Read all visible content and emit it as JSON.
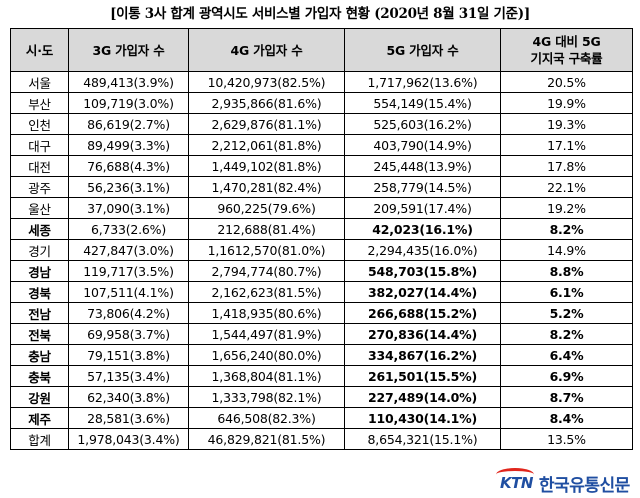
{
  "title": "[이통 3사 합계 광역시도 서비스별 가입자 현황 (2020년 8월 31일 기준)]",
  "header": {
    "region": "시·도",
    "c3g": "3G 가입자 수",
    "c4g": "4G 가입자 수",
    "c5g": "5G 가입자 수",
    "rate_line1": "4G 대비 5G",
    "rate_line2": "기지국 구축률"
  },
  "rows": [
    {
      "region": "서울",
      "c3g": "489,413(3.9%)",
      "c4g": "10,420,973(82.5%)",
      "c5g": "1,717,962(13.6%)",
      "rate": "20.5%",
      "highlight": false
    },
    {
      "region": "부산",
      "c3g": "109,719(3.0%)",
      "c4g": "2,935,866(81.6%)",
      "c5g": "554,149(15.4%)",
      "rate": "19.9%",
      "highlight": false
    },
    {
      "region": "인천",
      "c3g": "86,619(2.7%)",
      "c4g": "2,629,876(81.1%)",
      "c5g": "525,603(16.2%)",
      "rate": "19.3%",
      "highlight": false
    },
    {
      "region": "대구",
      "c3g": "89,499(3.3%)",
      "c4g": "2,212,061(81.8%)",
      "c5g": "403,790(14.9%)",
      "rate": "17.1%",
      "highlight": false
    },
    {
      "region": "대전",
      "c3g": "76,688(4.3%)",
      "c4g": "1,449,102(81.8%)",
      "c5g": "245,448(13.9%)",
      "rate": "17.8%",
      "highlight": false
    },
    {
      "region": "광주",
      "c3g": "56,236(3.1%)",
      "c4g": "1,470,281(82.4%)",
      "c5g": "258,779(14.5%)",
      "rate": "22.1%",
      "highlight": false
    },
    {
      "region": "울산",
      "c3g": "37,090(3.1%)",
      "c4g": "960,225(79.6%)",
      "c5g": "209,591(17.4%)",
      "rate": "19.2%",
      "highlight": false
    },
    {
      "region": "세종",
      "c3g": "6,733(2.6%)",
      "c4g": "212,688(81.4%)",
      "c5g": "42,023(16.1%)",
      "rate": "8.2%",
      "highlight": true
    },
    {
      "region": "경기",
      "c3g": "427,847(3.0%)",
      "c4g": "1,1612,570(81.0%)",
      "c5g": "2,294,435(16.0%)",
      "rate": "14.9%",
      "highlight": false
    },
    {
      "region": "경남",
      "c3g": "119,717(3.5%)",
      "c4g": "2,794,774(80.7%)",
      "c5g": "548,703(15.8%)",
      "rate": "8.8%",
      "highlight": true
    },
    {
      "region": "경북",
      "c3g": "107,511(4.1%)",
      "c4g": "2,162,623(81.5%)",
      "c5g": "382,027(14.4%)",
      "rate": "6.1%",
      "highlight": true
    },
    {
      "region": "전남",
      "c3g": "73,806(4.2%)",
      "c4g": "1,418,935(80.6%)",
      "c5g": "266,688(15.2%)",
      "rate": "5.2%",
      "highlight": true
    },
    {
      "region": "전북",
      "c3g": "69,958(3.7%)",
      "c4g": "1,544,497(81.9%)",
      "c5g": "270,836(14.4%)",
      "rate": "8.2%",
      "highlight": true
    },
    {
      "region": "충남",
      "c3g": "79,151(3.8%)",
      "c4g": "1,656,240(80.0%)",
      "c5g": "334,867(16.2%)",
      "rate": "6.4%",
      "highlight": true
    },
    {
      "region": "충북",
      "c3g": "57,135(3.4%)",
      "c4g": "1,368,804(81.1%)",
      "c5g": "261,501(15.5%)",
      "rate": "6.9%",
      "highlight": true
    },
    {
      "region": "강원",
      "c3g": "62,340(3.8%)",
      "c4g": "1,333,798(82.1%)",
      "c5g": "227,489(14.0%)",
      "rate": "8.7%",
      "highlight": true
    },
    {
      "region": "제주",
      "c3g": "28,581(3.6%)",
      "c4g": "646,508(82.3%)",
      "c5g": "110,430(14.1%)",
      "rate": "8.4%",
      "highlight": true
    },
    {
      "region": "합계",
      "c3g": "1,978,043(3.4%)",
      "c4g": "46,829,821(81.5%)",
      "c5g": "8,654,321(15.1%)",
      "rate": "13.5%",
      "highlight": false
    }
  ],
  "logo": {
    "mark": "KTN",
    "name": "한국유통신문",
    "tag": "Korea Trade News"
  }
}
